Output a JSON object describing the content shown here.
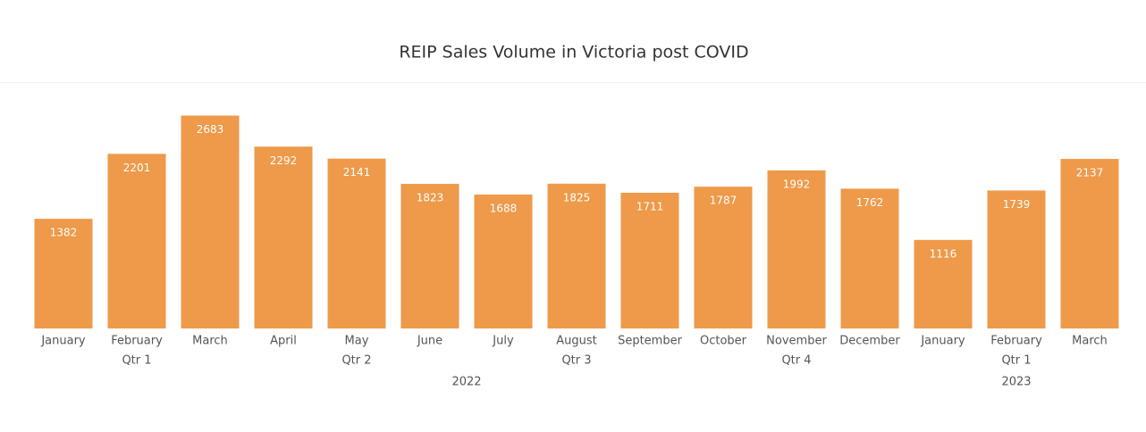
{
  "chart_data": {
    "type": "bar",
    "title": "REIP Sales Volume in Victoria post COVID",
    "categories": [
      "January",
      "February",
      "March",
      "April",
      "May",
      "June",
      "July",
      "August",
      "September",
      "October",
      "November",
      "December",
      "January",
      "February",
      "March"
    ],
    "quarters": [
      "Qtr 1",
      "Qtr 1",
      "Qtr 1",
      "Qtr 2",
      "Qtr 2",
      "Qtr 2",
      "Qtr 3",
      "Qtr 3",
      "Qtr 3",
      "Qtr 4",
      "Qtr 4",
      "Qtr 4",
      "Qtr 1",
      "Qtr 1",
      "Qtr 1"
    ],
    "years": [
      "2022",
      "2022",
      "2022",
      "2022",
      "2022",
      "2022",
      "2022",
      "2022",
      "2022",
      "2022",
      "2022",
      "2022",
      "2023",
      "2023",
      "2023"
    ],
    "values": [
      1382,
      2201,
      2683,
      2292,
      2141,
      1823,
      1688,
      1825,
      1711,
      1787,
      1992,
      1762,
      1116,
      1739,
      2137
    ],
    "color": "#ee9a4a",
    "ylim": [
      0,
      2700
    ]
  }
}
